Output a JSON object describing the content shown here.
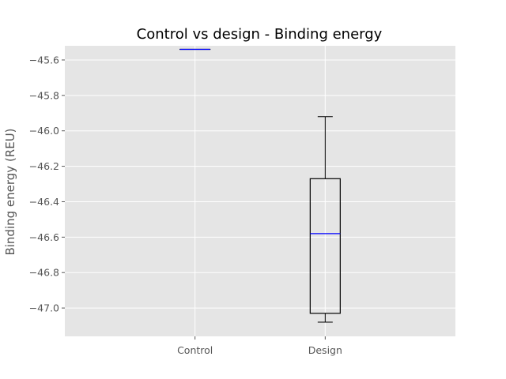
{
  "chart_data": {
    "type": "boxplot",
    "title": "Control vs design - Binding energy",
    "xlabel": "",
    "ylabel": "Binding energy (REU)",
    "categories": [
      "Control",
      "Design"
    ],
    "ylim": [
      -47.16,
      -45.52
    ],
    "yticks": [
      -45.6,
      -45.8,
      -46.0,
      -46.2,
      -46.4,
      -46.6,
      -46.8,
      -47.0
    ],
    "ytick_labels": [
      "−45.6",
      "−45.8",
      "−46.0",
      "−46.2",
      "−46.4",
      "−46.6",
      "−46.8",
      "−47.0"
    ],
    "grid": true,
    "series": [
      {
        "category": "Control",
        "whisker_low": -45.54,
        "q1": -45.54,
        "median": -45.54,
        "q3": -45.54,
        "whisker_high": -45.54
      },
      {
        "category": "Design",
        "whisker_low": -47.08,
        "q1": -47.03,
        "median": -46.58,
        "q3": -46.27,
        "whisker_high": -45.92
      }
    ],
    "colors": {
      "background": "#e5e5e5",
      "grid": "#ffffff",
      "box": "#000000",
      "median": "#0000ff",
      "text": "#555555"
    }
  }
}
